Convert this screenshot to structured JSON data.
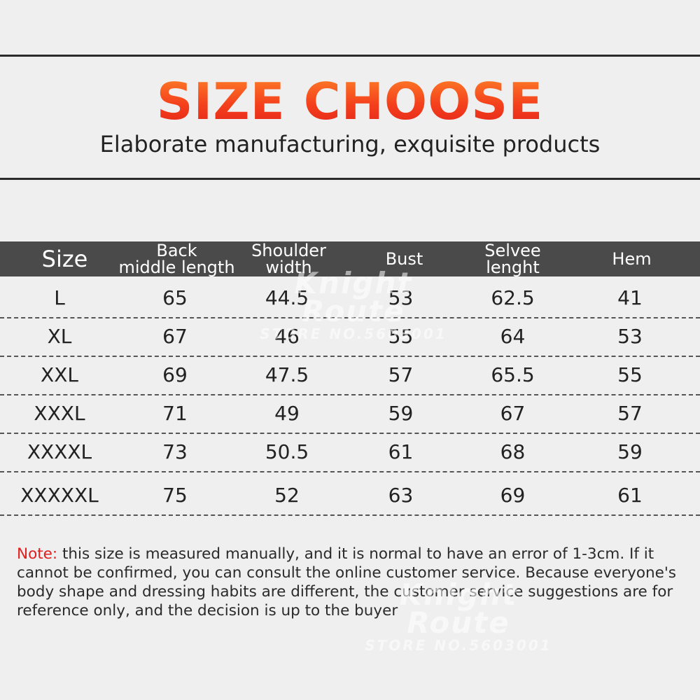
{
  "header": {
    "title": "SIZE CHOOSE",
    "subtitle": "Elaborate manufacturing, exquisite products"
  },
  "table": {
    "columns": [
      {
        "line1": "Size",
        "line2": ""
      },
      {
        "line1": "Back",
        "line2": "middle length"
      },
      {
        "line1": "Shoulder",
        "line2": "width"
      },
      {
        "line1": "Bust",
        "line2": ""
      },
      {
        "line1": "Selvee",
        "line2": "lenght"
      },
      {
        "line1": "Hem",
        "line2": ""
      }
    ],
    "rows": [
      [
        "L",
        "65",
        "44.5",
        "53",
        "62.5",
        "41"
      ],
      [
        "XL",
        "67",
        "46",
        "55",
        "64",
        "53"
      ],
      [
        "XXL",
        "69",
        "47.5",
        "57",
        "65.5",
        "55"
      ],
      [
        "XXXL",
        "71",
        "49",
        "59",
        "67",
        "57"
      ],
      [
        "XXXXL",
        "73",
        "50.5",
        "61",
        "68",
        "59"
      ],
      [
        "XXXXXL",
        "75",
        "52",
        "63",
        "69",
        "61"
      ]
    ]
  },
  "note": {
    "label": "Note:",
    "text": " this size is measured manually, and it is normal to have an error of 1-3cm. If it cannot be confirmed, you can consult the online customer service. Because everyone's body shape and dressing habits are different, the customer service suggestions are for reference only, and the decision is up to the buyer"
  },
  "watermark": {
    "brand": "Knight Route",
    "store": "STORE NO.5603001"
  }
}
